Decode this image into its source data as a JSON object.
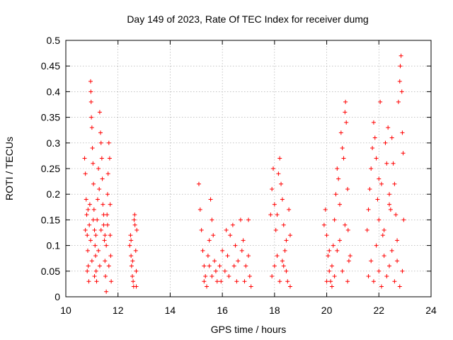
{
  "chart_data": {
    "type": "scatter",
    "title": "Day 149 of 2023, Rate Of TEC Index for receiver dumg",
    "xlabel": "GPS time / hours",
    "ylabel": "ROTI / TECUs",
    "xlim": [
      10,
      24
    ],
    "ylim": [
      0,
      0.5
    ],
    "x_ticks": [
      10,
      12,
      14,
      16,
      18,
      20,
      22,
      24
    ],
    "y_ticks": [
      0,
      0.05,
      0.1,
      0.15,
      0.2,
      0.25,
      0.3,
      0.35,
      0.4,
      0.45,
      0.5
    ],
    "x_tick_labels": [
      "10",
      "12",
      "14",
      "16",
      "18",
      "20",
      "22",
      "24"
    ],
    "y_tick_labels": [
      "0",
      "0.05",
      "0.1",
      "0.15",
      "0.2",
      "0.25",
      "0.3",
      "0.35",
      "0.4",
      "0.45",
      "0.5"
    ],
    "grid": true,
    "marker": "+",
    "color": "#ff0000",
    "series": [
      {
        "points": [
          [
            10.72,
            0.27
          ],
          [
            10.75,
            0.24
          ],
          [
            10.78,
            0.19
          ],
          [
            10.8,
            0.16
          ],
          [
            10.82,
            0.12
          ],
          [
            10.84,
            0.09
          ],
          [
            10.86,
            0.06
          ],
          [
            10.88,
            0.03
          ],
          [
            10.9,
            0.14
          ],
          [
            10.92,
            0.18
          ],
          [
            10.95,
            0.42
          ],
          [
            10.96,
            0.4
          ],
          [
            10.97,
            0.38
          ],
          [
            10.98,
            0.35
          ],
          [
            11.0,
            0.33
          ],
          [
            11.02,
            0.29
          ],
          [
            11.04,
            0.26
          ],
          [
            11.06,
            0.22
          ],
          [
            11.08,
            0.17
          ],
          [
            11.1,
            0.13
          ],
          [
            11.12,
            0.1
          ],
          [
            11.14,
            0.08
          ],
          [
            11.16,
            0.05
          ],
          [
            11.18,
            0.03
          ],
          [
            11.2,
            0.15
          ],
          [
            11.22,
            0.19
          ],
          [
            11.25,
            0.25
          ],
          [
            11.28,
            0.21
          ],
          [
            11.3,
            0.36
          ],
          [
            11.33,
            0.32
          ],
          [
            11.35,
            0.3
          ],
          [
            11.38,
            0.27
          ],
          [
            11.4,
            0.23
          ],
          [
            11.42,
            0.18
          ],
          [
            11.45,
            0.14
          ],
          [
            11.48,
            0.11
          ],
          [
            11.5,
            0.07
          ],
          [
            11.52,
            0.04
          ],
          [
            11.55,
            0.01
          ],
          [
            11.58,
            0.16
          ],
          [
            11.6,
            0.2
          ],
          [
            11.62,
            0.24
          ],
          [
            11.65,
            0.3
          ],
          [
            11.68,
            0.27
          ],
          [
            11.7,
            0.12
          ],
          [
            11.72,
            0.08
          ],
          [
            11.74,
            0.03
          ],
          [
            10.85,
            0.17
          ],
          [
            10.95,
            0.11
          ],
          [
            11.05,
            0.15
          ],
          [
            11.15,
            0.12
          ],
          [
            11.25,
            0.09
          ],
          [
            11.35,
            0.13
          ],
          [
            11.45,
            0.16
          ],
          [
            11.55,
            0.1
          ],
          [
            11.65,
            0.06
          ],
          [
            10.75,
            0.13
          ],
          [
            10.82,
            0.05
          ],
          [
            11.0,
            0.07
          ],
          [
            11.1,
            0.04
          ],
          [
            11.3,
            0.06
          ],
          [
            11.5,
            0.12
          ],
          [
            11.6,
            0.14
          ],
          [
            11.7,
            0.18
          ],
          [
            12.45,
            0.1
          ],
          [
            12.48,
            0.12
          ],
          [
            12.5,
            0.08
          ],
          [
            12.52,
            0.06
          ],
          [
            12.55,
            0.04
          ],
          [
            12.58,
            0.03
          ],
          [
            12.6,
            0.02
          ],
          [
            12.62,
            0.15
          ],
          [
            12.65,
            0.14
          ],
          [
            12.68,
            0.09
          ],
          [
            12.7,
            0.05
          ],
          [
            12.72,
            0.13
          ],
          [
            12.5,
            0.11
          ],
          [
            12.56,
            0.07
          ],
          [
            12.64,
            0.16
          ],
          [
            12.7,
            0.02
          ],
          [
            15.1,
            0.22
          ],
          [
            15.15,
            0.17
          ],
          [
            15.2,
            0.13
          ],
          [
            15.25,
            0.09
          ],
          [
            15.3,
            0.06
          ],
          [
            15.35,
            0.04
          ],
          [
            15.4,
            0.02
          ],
          [
            15.45,
            0.08
          ],
          [
            15.5,
            0.11
          ],
          [
            15.55,
            0.19
          ],
          [
            15.6,
            0.15
          ],
          [
            15.65,
            0.12
          ],
          [
            15.7,
            0.07
          ],
          [
            15.75,
            0.05
          ],
          [
            15.8,
            0.03
          ],
          [
            15.9,
            0.06
          ],
          [
            16.0,
            0.09
          ],
          [
            16.1,
            0.05
          ],
          [
            16.2,
            0.08
          ],
          [
            16.3,
            0.12
          ],
          [
            16.4,
            0.14
          ],
          [
            16.5,
            0.1
          ],
          [
            16.6,
            0.07
          ],
          [
            16.7,
            0.15
          ],
          [
            16.8,
            0.11
          ],
          [
            16.9,
            0.06
          ],
          [
            17.0,
            0.08
          ],
          [
            17.05,
            0.04
          ],
          [
            17.1,
            0.02
          ],
          [
            15.3,
            0.03
          ],
          [
            15.6,
            0.04
          ],
          [
            15.95,
            0.03
          ],
          [
            16.25,
            0.04
          ],
          [
            16.55,
            0.03
          ],
          [
            16.85,
            0.03
          ],
          [
            16.15,
            0.13
          ],
          [
            16.45,
            0.06
          ],
          [
            16.75,
            0.09
          ],
          [
            17.0,
            0.15
          ],
          [
            15.5,
            0.06
          ],
          [
            17.85,
            0.16
          ],
          [
            17.9,
            0.21
          ],
          [
            17.95,
            0.25
          ],
          [
            18.0,
            0.18
          ],
          [
            18.05,
            0.13
          ],
          [
            18.1,
            0.08
          ],
          [
            18.15,
            0.24
          ],
          [
            18.2,
            0.27
          ],
          [
            18.25,
            0.22
          ],
          [
            18.3,
            0.19
          ],
          [
            18.35,
            0.14
          ],
          [
            18.4,
            0.09
          ],
          [
            18.45,
            0.05
          ],
          [
            18.5,
            0.03
          ],
          [
            18.55,
            0.17
          ],
          [
            18.6,
            0.12
          ],
          [
            17.9,
            0.04
          ],
          [
            18.0,
            0.06
          ],
          [
            18.2,
            0.03
          ],
          [
            18.3,
            0.07
          ],
          [
            18.45,
            0.11
          ],
          [
            18.6,
            0.02
          ],
          [
            18.1,
            0.16
          ],
          [
            18.35,
            0.06
          ],
          [
            19.9,
            0.14
          ],
          [
            19.95,
            0.17
          ],
          [
            20.0,
            0.12
          ],
          [
            20.05,
            0.08
          ],
          [
            20.1,
            0.05
          ],
          [
            20.15,
            0.03
          ],
          [
            20.2,
            0.02
          ],
          [
            20.25,
            0.1
          ],
          [
            20.3,
            0.15
          ],
          [
            20.35,
            0.2
          ],
          [
            20.4,
            0.25
          ],
          [
            20.45,
            0.23
          ],
          [
            20.5,
            0.18
          ],
          [
            20.55,
            0.32
          ],
          [
            20.6,
            0.29
          ],
          [
            20.65,
            0.27
          ],
          [
            20.7,
            0.36
          ],
          [
            20.72,
            0.38
          ],
          [
            20.75,
            0.34
          ],
          [
            20.8,
            0.21
          ],
          [
            20.82,
            0.13
          ],
          [
            20.85,
            0.07
          ],
          [
            20.0,
            0.03
          ],
          [
            20.2,
            0.06
          ],
          [
            20.4,
            0.09
          ],
          [
            20.6,
            0.05
          ],
          [
            20.8,
            0.03
          ],
          [
            20.3,
            0.04
          ],
          [
            20.5,
            0.11
          ],
          [
            20.7,
            0.14
          ],
          [
            20.1,
            0.09
          ],
          [
            20.9,
            0.08
          ],
          [
            21.55,
            0.13
          ],
          [
            21.6,
            0.17
          ],
          [
            21.65,
            0.21
          ],
          [
            21.7,
            0.25
          ],
          [
            21.75,
            0.29
          ],
          [
            21.8,
            0.34
          ],
          [
            21.85,
            0.31
          ],
          [
            21.9,
            0.27
          ],
          [
            21.95,
            0.19
          ],
          [
            22.0,
            0.15
          ],
          [
            22.05,
            0.38
          ],
          [
            22.1,
            0.22
          ],
          [
            22.15,
            0.12
          ],
          [
            22.2,
            0.08
          ],
          [
            22.25,
            0.3
          ],
          [
            22.3,
            0.26
          ],
          [
            22.35,
            0.33
          ],
          [
            22.4,
            0.2
          ],
          [
            22.45,
            0.17
          ],
          [
            22.5,
            0.31
          ],
          [
            22.55,
            0.26
          ],
          [
            22.6,
            0.22
          ],
          [
            22.65,
            0.16
          ],
          [
            22.7,
            0.11
          ],
          [
            22.75,
            0.38
          ],
          [
            22.8,
            0.42
          ],
          [
            22.82,
            0.45
          ],
          [
            22.85,
            0.47
          ],
          [
            22.88,
            0.4
          ],
          [
            22.9,
            0.32
          ],
          [
            22.93,
            0.28
          ],
          [
            22.95,
            0.15
          ],
          [
            21.6,
            0.04
          ],
          [
            21.7,
            0.07
          ],
          [
            21.8,
            0.03
          ],
          [
            21.9,
            0.1
          ],
          [
            22.0,
            0.05
          ],
          [
            22.1,
            0.02
          ],
          [
            22.2,
            0.13
          ],
          [
            22.3,
            0.04
          ],
          [
            22.4,
            0.06
          ],
          [
            22.5,
            0.09
          ],
          [
            22.6,
            0.03
          ],
          [
            22.7,
            0.07
          ],
          [
            22.8,
            0.02
          ],
          [
            22.9,
            0.05
          ],
          [
            22.0,
            0.23
          ],
          [
            22.4,
            0.18
          ]
        ]
      }
    ]
  }
}
